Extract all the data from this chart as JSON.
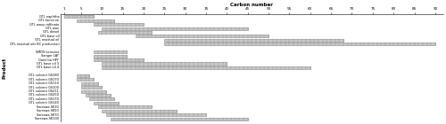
{
  "title": "Carbon number",
  "ylabel": "Product",
  "products": [
    "GTL naphtha",
    "GTL kerosine",
    "GTL waxy raffinate",
    "GTL wax",
    "GTL diesel",
    "GTL base oil",
    "GTL residual oil",
    "GTL residual oils BC production",
    "",
    "SMDS kerosine",
    "Sanger LAT",
    "Garolina HPY",
    "GTL base oil 3",
    "GTL base oil 4",
    "",
    "GTL solvent GS180",
    "GTL solvent GS170",
    "GTL solvent GS110",
    "GTL solvent GS100",
    "GTL solvent GS211",
    "GTL solvent GS250",
    "GTL solvent GS170",
    "GTL solvent GS140",
    "Sarrawa SK30",
    "Sarrawa SK50",
    "Sarrawa SK70",
    "Sarrawa SK100"
  ],
  "bars": [
    [
      1,
      8
    ],
    [
      4,
      13
    ],
    [
      8,
      20
    ],
    [
      10,
      45
    ],
    [
      9,
      22
    ],
    [
      18,
      50
    ],
    [
      25,
      68
    ],
    [
      25,
      90
    ],
    null,
    [
      8,
      16
    ],
    [
      8,
      16
    ],
    [
      8,
      20
    ],
    [
      10,
      40
    ],
    [
      10,
      60
    ],
    null,
    [
      4,
      7
    ],
    [
      4,
      8
    ],
    [
      5,
      9
    ],
    [
      5,
      10
    ],
    [
      5,
      11
    ],
    [
      6,
      12
    ],
    [
      7,
      13
    ],
    [
      8,
      14
    ],
    [
      9,
      22
    ],
    [
      10,
      28
    ],
    [
      11,
      35
    ],
    [
      12,
      45
    ]
  ],
  "x_ticks": [
    1,
    5,
    10,
    15,
    20,
    25,
    30,
    35,
    40,
    45,
    50,
    55,
    60,
    65,
    70,
    75,
    80,
    85,
    90
  ],
  "x_tick_labels": [
    "1",
    "5",
    "10",
    "15",
    "20",
    "25",
    "30",
    "35",
    "40",
    "45",
    "50",
    "55",
    "60",
    "65",
    "70",
    "75 75",
    "80",
    "85",
    "90"
  ],
  "x_max": 92,
  "bar_color": "#c8c8c8",
  "bar_edge_color": "#888888",
  "background": "#ffffff",
  "fig_width": 5.0,
  "fig_height": 1.4,
  "dpi": 100,
  "label_fontsize": 2.5,
  "tick_fontsize": 3.0,
  "title_fontsize": 4.0
}
